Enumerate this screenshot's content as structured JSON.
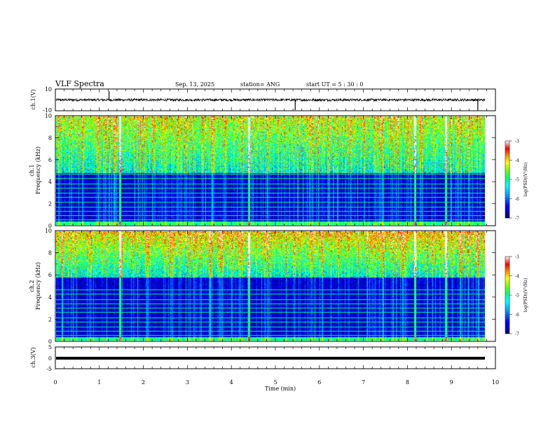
{
  "header": {
    "title": "VLF Spectra",
    "date": "Sep. 13, 2025",
    "station": "station= ANG",
    "start": "start  UT =   5  : 30 : 0"
  },
  "chart_data": [
    {
      "type": "line",
      "id": "ch1-waveform",
      "ylabel": "ch.1(V)",
      "ylim": [
        -10,
        10
      ],
      "yticks": [
        "10",
        "-10"
      ],
      "xlim": [
        0,
        10
      ],
      "baseline": 0,
      "spikes_min": [
        1.22,
        5.45,
        9.6
      ]
    },
    {
      "type": "heatmap",
      "id": "ch1-spectrogram",
      "ylabel_ch": "ch.1",
      "ylabel": "Frequency (kHz)",
      "ylim": [
        0,
        10
      ],
      "yticks": [
        "0",
        "2",
        "4",
        "6",
        "8",
        "10"
      ],
      "xlim": [
        0,
        9.8
      ],
      "colorbar": {
        "ticks": [
          "-3",
          "-4",
          "-5",
          "-6",
          "-7"
        ],
        "label": "log(PSD)(V²/Hz)",
        "range": [
          -7,
          -3
        ]
      },
      "hum_lines_khz": [
        0.5,
        0.9,
        1.3,
        1.7,
        2.1,
        2.6,
        3.0,
        3.4,
        3.8,
        4.3,
        4.7
      ],
      "bright_columns_min": [
        1.45,
        4.4,
        8.2,
        8.9
      ],
      "noise_floor_khz": 4.8
    },
    {
      "type": "heatmap",
      "id": "ch2-spectrogram",
      "ylabel_ch": "ch.2",
      "ylabel": "Frequency (kHz)",
      "ylim": [
        0,
        10
      ],
      "yticks": [
        "0",
        "2",
        "4",
        "6",
        "8",
        "10"
      ],
      "xlim": [
        0,
        9.8
      ],
      "colorbar": {
        "ticks": [
          "-3",
          "-4",
          "-5",
          "-6",
          "-7"
        ],
        "label": "log(PSD)(V²/Hz)",
        "range": [
          -7,
          -3
        ]
      },
      "hum_lines_khz": [
        0.5,
        0.9,
        1.3,
        1.7,
        2.1,
        2.6,
        3.0,
        3.4,
        3.8,
        4.3,
        4.7
      ],
      "bright_columns_min": [
        1.45,
        4.4,
        8.2,
        8.9
      ],
      "noise_floor_khz": 5.8
    },
    {
      "type": "line",
      "id": "ch3-waveform",
      "ylabel": "ch.3(V)",
      "ylim": [
        -5,
        5
      ],
      "yticks": [
        "5",
        "0",
        "-5"
      ],
      "xlim": [
        0,
        10
      ],
      "baseline": 0
    }
  ],
  "xaxis": {
    "label": "Time (min)",
    "ticks": [
      "0",
      "1",
      "2",
      "3",
      "4",
      "5",
      "6",
      "7",
      "8",
      "9",
      "10"
    ]
  },
  "colors": {
    "map": [
      "#000080",
      "#0000ff",
      "#00a0ff",
      "#00ffff",
      "#00ff80",
      "#80ff00",
      "#ffff00",
      "#ff8000",
      "#ff0000",
      "#ffffff"
    ]
  }
}
